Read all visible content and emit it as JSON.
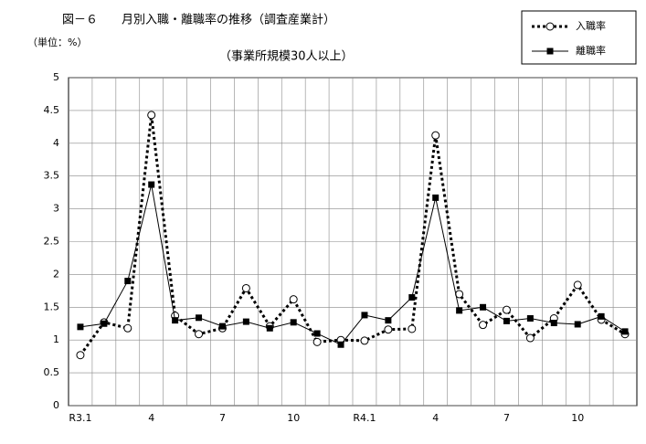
{
  "chart_data": {
    "type": "line",
    "title": "図－６　　月別入職・離職率の推移（調査産業計）",
    "subtitle": "（事業所規模30人以上）",
    "unit_label": "（単位：%）",
    "categories": [
      "R3.1",
      null,
      null,
      "4",
      null,
      null,
      "7",
      null,
      null,
      "10",
      null,
      null,
      "R4.1",
      null,
      null,
      "4",
      null,
      null,
      "7",
      null,
      null,
      "10",
      null,
      null
    ],
    "series": [
      {
        "name": "入職率",
        "color": "#000000",
        "dashed": true,
        "marker": "circle",
        "values": [
          0.77,
          1.27,
          1.18,
          4.43,
          1.37,
          1.09,
          1.18,
          1.79,
          1.21,
          1.62,
          0.97,
          1.0,
          0.99,
          1.16,
          1.17,
          4.12,
          1.7,
          1.23,
          1.46,
          1.03,
          1.33,
          1.84,
          1.31,
          1.09
        ]
      },
      {
        "name": "離職率",
        "color": "#000000",
        "dashed": false,
        "marker": "square",
        "values": [
          1.2,
          1.25,
          1.9,
          3.37,
          1.3,
          1.34,
          1.21,
          1.28,
          1.18,
          1.27,
          1.1,
          0.93,
          1.38,
          1.3,
          1.65,
          3.17,
          1.45,
          1.5,
          1.29,
          1.33,
          1.26,
          1.24,
          1.36,
          1.13
        ]
      }
    ],
    "ylim": [
      0,
      5
    ],
    "yticks": [
      0,
      0.5,
      1,
      1.5,
      2,
      2.5,
      3,
      3.5,
      4,
      4.5,
      5
    ],
    "grid": true
  }
}
